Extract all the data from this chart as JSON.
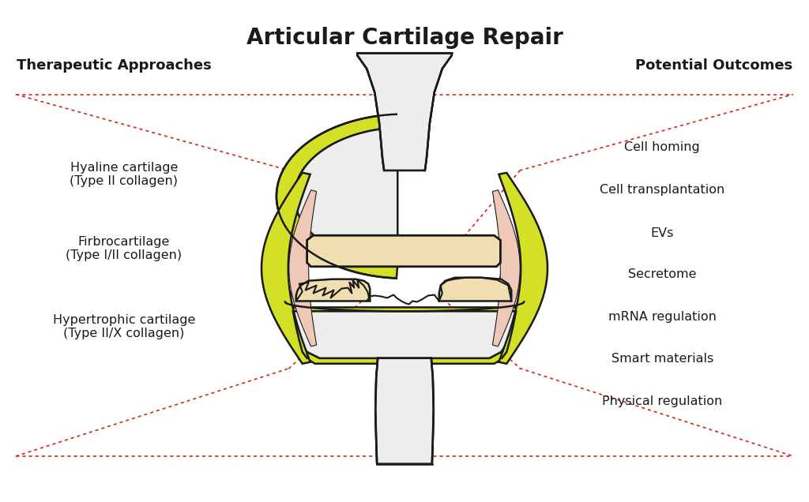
{
  "title": "Articular Cartilage Repair",
  "left_header": "Therapeutic Approaches",
  "right_header": "Potential Outcomes",
  "left_items": [
    "Hyaline cartilage\n(Type II collagen)",
    "Firbrocartilage\n(Type I/II collagen)",
    "Hypertrophic cartilage\n(Type II/X collagen)"
  ],
  "right_items": [
    "Cell homing",
    "Cell transplantation",
    "EVs",
    "Secretome",
    "mRNA regulation",
    "Smart materials",
    "Physical regulation"
  ],
  "background_color": "#ffffff",
  "text_color": "#1a1a1a",
  "dotted_line_color": "#d63031",
  "title_fontsize": 20,
  "header_fontsize": 13,
  "item_fontsize": 11.5,
  "bone_color": "#ededeb",
  "cartilage_color": "#f0ddb0",
  "yellow_color": "#d4e025",
  "pink_color": "#f0c8b8",
  "outline_color": "#1a1a1a"
}
